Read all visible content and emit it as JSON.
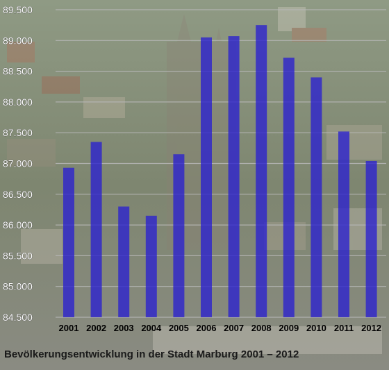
{
  "chart_data": {
    "type": "bar",
    "title": "Bevölkerungsentwicklung in der Stadt Marburg 2001 – 2012",
    "xlabel": "",
    "ylabel": "",
    "categories": [
      "2001",
      "2002",
      "2003",
      "2004",
      "2005",
      "2006",
      "2007",
      "2008",
      "2009",
      "2010",
      "2011",
      "2012"
    ],
    "values": [
      86930,
      87350,
      86300,
      86150,
      87150,
      89050,
      89070,
      89250,
      88720,
      88400,
      87520,
      87040
    ],
    "ylim": [
      84500,
      89500
    ],
    "y_ticks": [
      "84.500",
      "85.000",
      "85.500",
      "86.000",
      "86.500",
      "87.000",
      "87.500",
      "88.000",
      "88.500",
      "89.000",
      "89.500"
    ],
    "grid": true,
    "legend": "none",
    "colors": {
      "bar": "#2a20d0",
      "grid": "#b8b8b8",
      "tick_text": "#ffffff",
      "category_text": "#000000"
    }
  }
}
